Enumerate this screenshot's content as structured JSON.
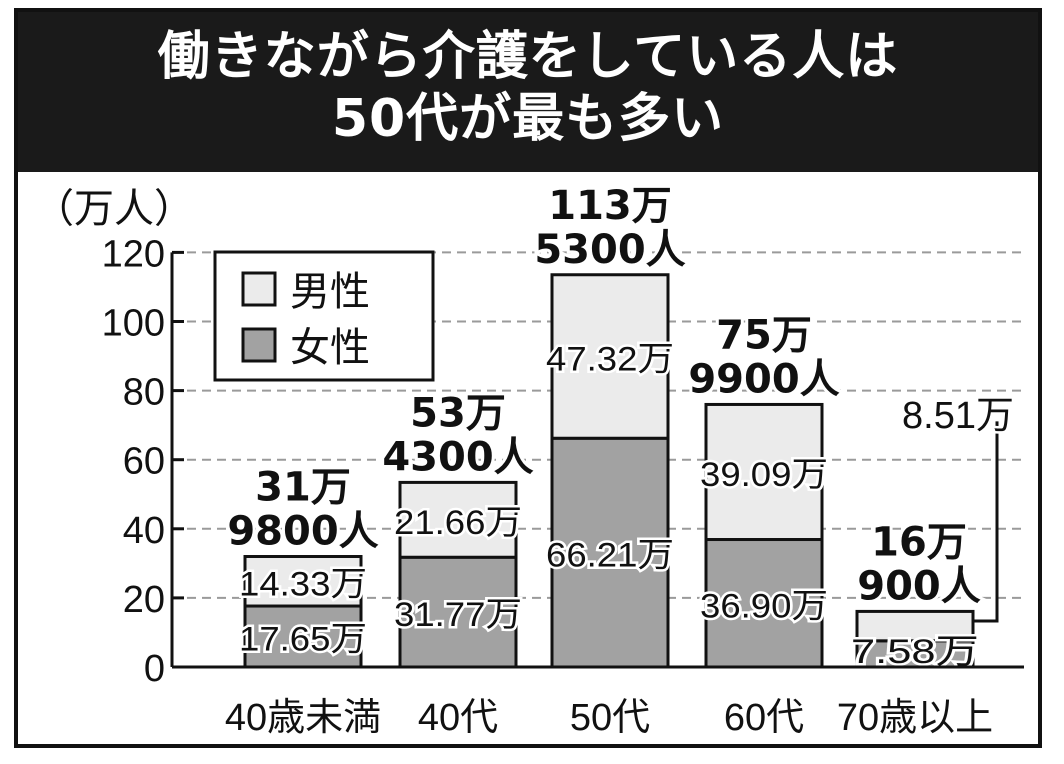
{
  "title_lines": [
    "働きながら介護をしている人は",
    "50代が最も多い"
  ],
  "chart_data": {
    "type": "bar",
    "stacked": true,
    "unit_label": "（万人）",
    "categories": [
      "40歳未満",
      "40代",
      "50代",
      "60代",
      "70歳以上"
    ],
    "series": [
      {
        "name": "女性",
        "values": [
          17.65,
          31.77,
          66.21,
          36.9,
          7.58
        ],
        "labels": [
          "17.65万",
          "31.77万",
          "66.21万",
          "36.90万",
          "7.58万"
        ],
        "color": "#a2a2a2"
      },
      {
        "name": "男性",
        "values": [
          14.33,
          21.66,
          47.32,
          39.09,
          8.51
        ],
        "labels": [
          "14.33万",
          "21.66万",
          "47.32万",
          "39.09万",
          "8.51万"
        ],
        "color": "#ebebeb"
      }
    ],
    "totals": [
      [
        "31万",
        "9800人"
      ],
      [
        "53万",
        "4300人"
      ],
      [
        "113万",
        "5300人"
      ],
      [
        "75万",
        "9900人"
      ],
      [
        "16万",
        "900人"
      ]
    ],
    "yticks": [
      0,
      20,
      40,
      60,
      80,
      100,
      120
    ],
    "ylim": [
      0,
      120
    ],
    "grid": true,
    "legend_position": "top-left",
    "legend": [
      {
        "label": "男性",
        "color": "#ebebeb"
      },
      {
        "label": "女性",
        "color": "#a2a2a2"
      }
    ]
  }
}
